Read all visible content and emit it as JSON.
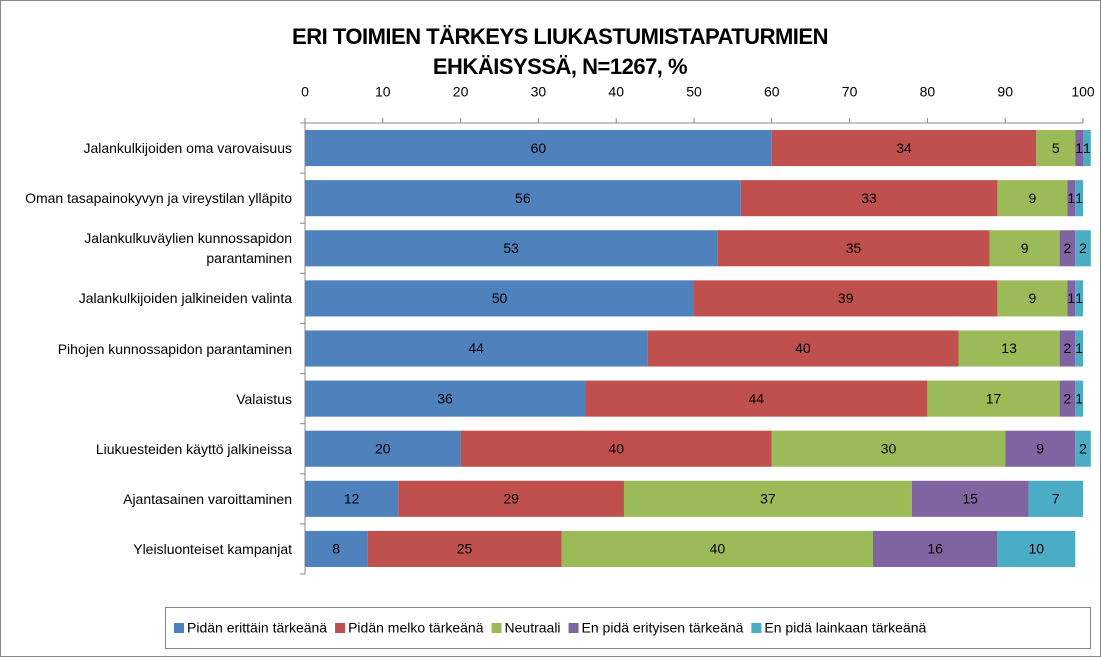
{
  "chart_data": {
    "type": "stacked-bar-horizontal",
    "title": "ERI TOIMIEN TÄRKEYS LIUKASTUMISTAPATURMIEN EHKÄISYSSÄ, N=1267, %",
    "categories": [
      "Jalankulkijoiden oma varovaisuus",
      "Oman tasapainokyvyn ja vireystilan ylläpito",
      "Jalankulkuväylien kunnossapidon parantaminen",
      "Jalankulkijoiden jalkineiden valinta",
      "Pihojen kunnossapidon parantaminen",
      "Valaistus",
      "Liukuesteiden käyttö jalkineissa",
      "Ajantasainen varoittaminen",
      "Yleisluonteiset kampanjat"
    ],
    "series": [
      {
        "name": "Pidän erittäin tärkeänä",
        "color": "#4f81bd",
        "values": [
          60,
          56,
          53,
          50,
          44,
          36,
          20,
          12,
          8
        ]
      },
      {
        "name": "Pidän melko tärkeänä",
        "color": "#c0504d",
        "values": [
          34,
          33,
          35,
          39,
          40,
          44,
          40,
          29,
          25
        ]
      },
      {
        "name": "Neutraali",
        "color": "#9bbb59",
        "values": [
          5,
          9,
          9,
          9,
          13,
          17,
          30,
          37,
          40
        ]
      },
      {
        "name": "En pidä erityisen tärkeänä",
        "color": "#8064a2",
        "values": [
          1,
          1,
          2,
          1,
          2,
          2,
          9,
          15,
          16
        ]
      },
      {
        "name": "En pidä lainkaan tärkeänä",
        "color": "#4bacc6",
        "values": [
          1,
          1,
          2,
          1,
          1,
          1,
          2,
          7,
          10
        ]
      }
    ],
    "xlim": [
      0,
      100
    ],
    "xticks": [
      0,
      10,
      20,
      30,
      40,
      50,
      60,
      70,
      80,
      90,
      100
    ],
    "legend": "bottom"
  }
}
